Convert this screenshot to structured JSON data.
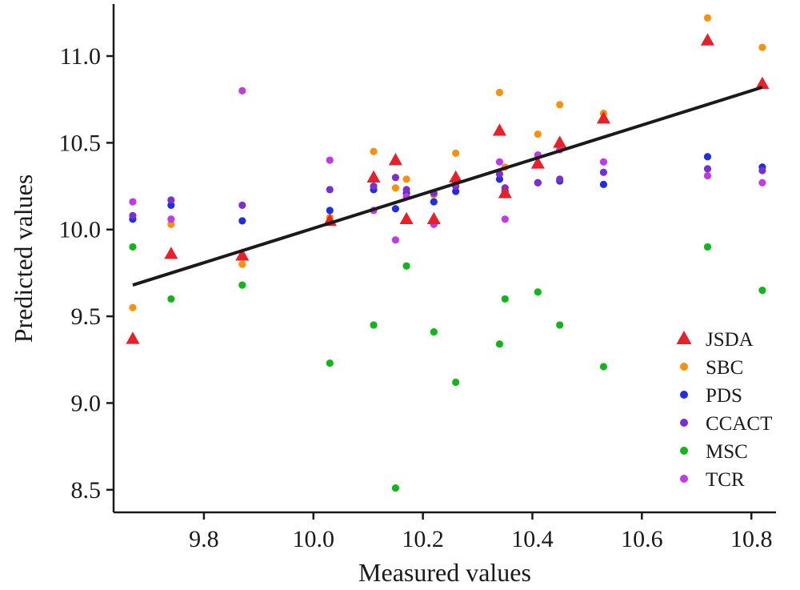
{
  "chart_data": {
    "type": "scatter",
    "title": "",
    "xlabel": "Measured values",
    "ylabel": "Predicted values",
    "xlim": [
      9.635,
      10.845
    ],
    "ylim": [
      8.37,
      11.3
    ],
    "x_ticks": [
      9.8,
      10.0,
      10.2,
      10.4,
      10.6,
      10.8
    ],
    "x_tick_labels": [
      "9.8",
      "10.0",
      "10.2",
      "10.4",
      "10.6",
      "10.8"
    ],
    "y_ticks": [
      8.5,
      9.0,
      9.5,
      10.0,
      10.5,
      11.0
    ],
    "y_tick_labels": [
      "8.5",
      "9.0",
      "9.5",
      "10.0",
      "10.5",
      "11.0"
    ],
    "grid": false,
    "legend_position": "bottom-right",
    "x": [
      9.67,
      9.74,
      9.87,
      10.03,
      10.11,
      10.15,
      10.17,
      10.22,
      10.26,
      10.34,
      10.35,
      10.41,
      10.45,
      10.53,
      10.72,
      10.82
    ],
    "series": [
      {
        "name": "JSDA",
        "marker": "triangle",
        "color": "#e8202a",
        "values": [
          9.37,
          9.86,
          9.85,
          10.05,
          10.3,
          10.4,
          10.06,
          10.06,
          10.3,
          10.57,
          10.21,
          10.38,
          10.5,
          10.64,
          11.09,
          10.84
        ]
      },
      {
        "name": "SBC",
        "marker": "circle",
        "color": "#f5920f",
        "values": [
          9.55,
          10.03,
          9.8,
          10.07,
          10.45,
          10.24,
          10.29,
          10.2,
          10.44,
          10.79,
          10.36,
          10.55,
          10.72,
          10.67,
          11.22,
          11.05
        ]
      },
      {
        "name": "PDS",
        "marker": "circle",
        "color": "#1f2fe0",
        "values": [
          10.06,
          10.14,
          10.05,
          10.11,
          10.23,
          10.12,
          10.21,
          10.16,
          10.22,
          10.29,
          10.22,
          10.27,
          10.28,
          10.26,
          10.42,
          10.36
        ]
      },
      {
        "name": "CCACT",
        "marker": "circle",
        "color": "#7a2fd0",
        "values": [
          10.08,
          10.17,
          10.14,
          10.23,
          10.25,
          10.3,
          10.23,
          10.21,
          10.25,
          10.32,
          10.24,
          10.27,
          10.29,
          10.33,
          10.35,
          10.34
        ]
      },
      {
        "name": "MSC",
        "marker": "circle",
        "color": "#12b51a",
        "values": [
          9.9,
          9.6,
          9.68,
          9.23,
          9.45,
          8.51,
          9.79,
          9.41,
          9.12,
          9.34,
          9.6,
          9.64,
          9.45,
          9.21,
          9.9,
          9.65
        ]
      },
      {
        "name": "TCR",
        "marker": "circle",
        "color": "#c23ae6",
        "values": [
          10.16,
          10.06,
          10.8,
          10.4,
          10.11,
          9.94,
          10.19,
          10.03,
          10.27,
          10.39,
          10.06,
          10.43,
          10.46,
          10.39,
          10.31,
          10.27
        ]
      }
    ],
    "fit_line": {
      "color": "#1a1a1a",
      "x": [
        9.67,
        10.82
      ],
      "y": [
        9.68,
        10.82
      ]
    }
  }
}
